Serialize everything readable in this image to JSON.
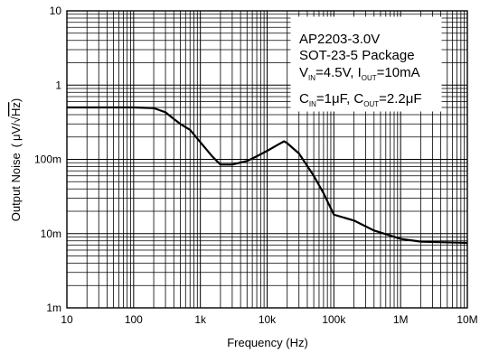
{
  "chart_data": {
    "type": "line",
    "title": "",
    "xlabel": "Frequency (Hz)",
    "ylabel": "Output Noise ( μV/√Hz )",
    "xscale": "log",
    "yscale": "log",
    "xlim": [
      10,
      10000000
    ],
    "ylim": [
      0.001,
      10
    ],
    "grid": true,
    "x_ticks": [
      {
        "value": 10,
        "label": "10"
      },
      {
        "value": 100,
        "label": "100"
      },
      {
        "value": 1000,
        "label": "1k"
      },
      {
        "value": 10000,
        "label": "10k"
      },
      {
        "value": 100000,
        "label": "100k"
      },
      {
        "value": 1000000,
        "label": "1M"
      },
      {
        "value": 10000000,
        "label": "10M"
      }
    ],
    "y_ticks": [
      {
        "value": 0.001,
        "label": "1m"
      },
      {
        "value": 0.01,
        "label": "10m"
      },
      {
        "value": 0.1,
        "label": "100m"
      },
      {
        "value": 1,
        "label": "1"
      },
      {
        "value": 10,
        "label": "10"
      }
    ],
    "ylabel_parts": {
      "prefix": "Output Noise",
      "open": "(",
      "unit": "μV/",
      "radical": "√",
      "radicand": "Hz",
      "close": ")"
    },
    "legend": {
      "position": "top-right",
      "line1": "AP2203-3.0V",
      "line2": "SOT-23-5 Package",
      "line3": {
        "a": "V",
        "a_sub": "IN",
        "b": "=4.5V, I",
        "b_sub": "OUT",
        "c": "=10mA"
      },
      "line4": {
        "a": "C",
        "a_sub": "IN",
        "b": "=1μF, C",
        "b_sub": "OUT",
        "c": "=2.2μF"
      }
    },
    "series": [
      {
        "color": "#000000",
        "points": [
          [
            10,
            0.5
          ],
          [
            30,
            0.5
          ],
          [
            100,
            0.5
          ],
          [
            200,
            0.49
          ],
          [
            300,
            0.43
          ],
          [
            400,
            0.35
          ],
          [
            500,
            0.3
          ],
          [
            700,
            0.25
          ],
          [
            1000,
            0.17
          ],
          [
            1500,
            0.11
          ],
          [
            2000,
            0.085
          ],
          [
            3000,
            0.085
          ],
          [
            5000,
            0.095
          ],
          [
            7000,
            0.11
          ],
          [
            10000,
            0.13
          ],
          [
            15000,
            0.16
          ],
          [
            18000,
            0.175
          ],
          [
            20000,
            0.165
          ],
          [
            30000,
            0.12
          ],
          [
            50000,
            0.06
          ],
          [
            70000,
            0.035
          ],
          [
            100000,
            0.018
          ],
          [
            200000,
            0.015
          ],
          [
            400000,
            0.011
          ],
          [
            1000000,
            0.0085
          ],
          [
            2000000,
            0.0078
          ],
          [
            10000000,
            0.0075
          ]
        ]
      }
    ]
  }
}
